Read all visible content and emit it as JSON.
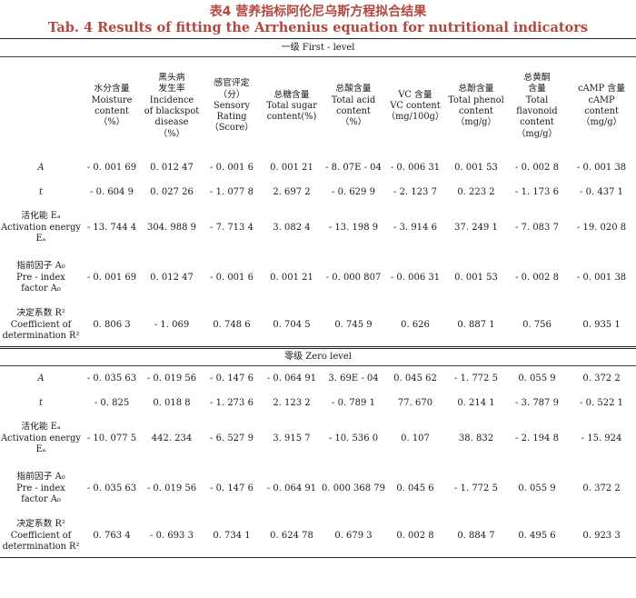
{
  "title": {
    "cn": "表4  营养指标阿伦尼乌斯方程拟合结果",
    "en": "Tab. 4   Results of fitting the Arrhenius equation for nutritional indicators"
  },
  "columns": [
    "水分含量\nMoisture\ncontent\n（%）",
    "黑头病\n发生率\nIncidence\nof blackspot\ndisease\n（%）",
    "感官评定\n（分）\nSensory\nRating\n（Score）",
    "总糖含量\nTotal sugar\ncontent(%)",
    "总酸含量\nTotal acid\ncontent\n（%）",
    "VC 含量\nVC content\n（mg/100g）",
    "总酚含量\nTotal phenol\ncontent\n（mg/g）",
    "总黄酮\n含量\nTotal\nflavonoid\ncontent\n（mg/g）",
    "cAMP 含量\ncAMP\ncontent\n（mg/g）"
  ],
  "levels": [
    {
      "name": "一级 First - level",
      "rows": [
        {
          "label": "A",
          "values": [
            "- 0. 001 69",
            "0. 012 47",
            "- 0. 001 6",
            "0. 001 21",
            "- 8. 07E - 04",
            "- 0. 006 31",
            "0. 001 53",
            "- 0. 002 8",
            "- 0. 001 38"
          ]
        },
        {
          "label": "t",
          "values": [
            "- 0. 604 9",
            "0. 027 26",
            "- 1. 077 8",
            "2. 697 2",
            "- 0. 629 9",
            "- 2. 123 7",
            "0. 223 2",
            "- 1. 173 6",
            "- 0. 437 1"
          ]
        },
        {
          "label": "活化能 Eₐ\nActivation energy\nEₐ",
          "values": [
            "- 13. 744 4",
            "304. 988 9",
            "- 7. 713 4",
            "3. 082 4",
            "- 13. 198 9",
            "- 3. 914 6",
            "37. 249 1",
            "- 7. 083 7",
            "- 19. 020 8"
          ]
        },
        {
          "label": "指前因子 A₀\nPre - index\nfactor A₀",
          "values": [
            "- 0. 001 69",
            "0. 012 47",
            "- 0. 001 6",
            "0. 001 21",
            "- 0. 000 807",
            "- 0. 006 31",
            "0. 001 53",
            "- 0. 002 8",
            "- 0. 001 38"
          ]
        },
        {
          "label": "决定系数 R²\nCoefficient of\ndetermination R²",
          "values": [
            "0. 806 3",
            "- 1. 069",
            "0. 748 6",
            "0. 704 5",
            "0. 745 9",
            "0. 626",
            "0. 887 1",
            "0. 756",
            "0. 935 1"
          ]
        }
      ]
    },
    {
      "name": "零级 Zero level",
      "rows": [
        {
          "label": "A",
          "values": [
            "- 0. 035 63",
            "- 0. 019 56",
            "- 0. 147 6",
            "- 0. 064 91",
            "3. 69E - 04",
            "0. 045 62",
            "- 1. 772 5",
            "0. 055 9",
            "0. 372 2"
          ]
        },
        {
          "label": "t",
          "values": [
            "- 0. 825",
            "0. 018 8",
            "- 1. 273 6",
            "2. 123 2",
            "- 0. 789 1",
            "77. 670",
            "0. 214 1",
            "- 3. 787 9",
            "- 0. 522 1"
          ]
        },
        {
          "label": "活化能 Eₐ\nActivation energy\nEₐ",
          "values": [
            "- 10. 077 5",
            "442. 234",
            "- 6. 527 9",
            "3. 915 7",
            "- 10. 536 0",
            "0. 107",
            "38. 832",
            "- 2. 194 8",
            "- 15. 924"
          ]
        },
        {
          "label": "指前因子 A₀\nPre - index\nfactor A₀",
          "values": [
            "- 0. 035 63",
            "- 0. 019 56",
            "- 0. 147 6",
            "- 0. 064 91",
            "0. 000 368 79",
            "0. 045 6",
            "- 1. 772 5",
            "0. 055 9",
            "0. 372 2"
          ]
        },
        {
          "label": "决定系数 R²\nCoefficient of\ndetermination R²",
          "values": [
            "0. 763 4",
            "- 0. 693 3",
            "0. 734 1",
            "0. 624 78",
            "0. 679 3",
            "0. 002 8",
            "0. 884 7",
            "0. 495 6",
            "0. 923 3"
          ]
        }
      ]
    }
  ]
}
